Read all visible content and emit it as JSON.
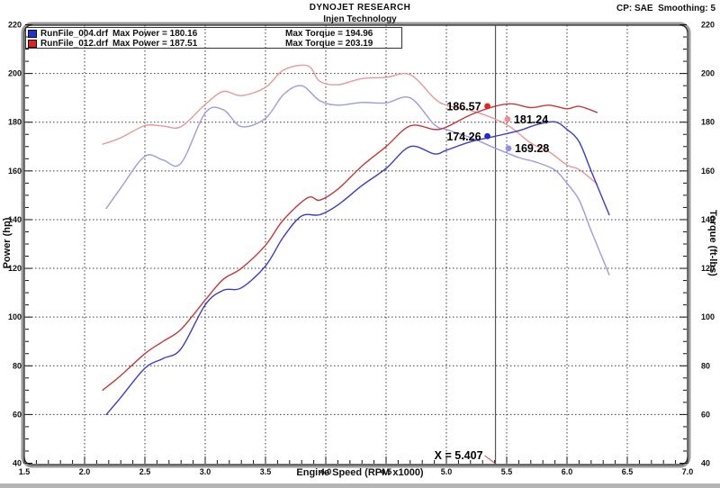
{
  "header": {
    "title": "DYNOJET RESEARCH",
    "subtitle": "Injen Technology",
    "correction": "CP: SAE  Smoothing: 5"
  },
  "legend": {
    "runs": [
      {
        "run_label": "RunFile_004.drf",
        "max_power": "Max Power = 180.16",
        "max_torque": "Max Torque = 194.96",
        "color": "#2233cc"
      },
      {
        "run_label": "RunFile_012.drf",
        "max_power": "Max Power = 187.51",
        "max_torque": "Max Torque = 203.19",
        "color": "#dd2222"
      }
    ]
  },
  "chart_data": {
    "type": "line",
    "title": "DYNOJET RESEARCH",
    "subtitle": "Injen Technology",
    "xlabel": "Engine Speed (RPM x1000)",
    "ylabel_left": "Power (hp)",
    "ylabel_right": "Torque (ft-lbs)",
    "xlim": [
      1.5,
      7.0
    ],
    "ylim": [
      40,
      220
    ],
    "x_ticks": [
      "1.5",
      "2.0",
      "2.5",
      "3.0",
      "3.5",
      "4.0",
      "4.5",
      "5.0",
      "5.5",
      "6.0",
      "6.5",
      "7.0"
    ],
    "y_ticks": [
      220,
      200,
      180,
      160,
      140,
      120,
      100,
      80,
      60,
      40
    ],
    "x_minor_step": 0.1,
    "y_minor_step": 5,
    "grid": true,
    "legend_position": "top-left",
    "cursor": {
      "x": 5.407,
      "label": "X = 5.407"
    },
    "series": [
      {
        "name": "RunFile_004.drf Torque",
        "unit": "ft-lbs",
        "color": "#9c9ce0",
        "x": [
          2.18,
          2.3,
          2.5,
          2.65,
          2.8,
          3.0,
          3.15,
          3.3,
          3.5,
          3.65,
          3.8,
          3.95,
          4.1,
          4.3,
          4.5,
          4.7,
          4.9,
          5.0,
          5.2,
          5.407,
          5.6,
          5.75,
          5.9,
          6.0,
          6.1,
          6.2,
          6.35
        ],
        "values": [
          144.6,
          153.0,
          166.0,
          164.5,
          163.2,
          183.8,
          185.1,
          178.2,
          181.6,
          191.4,
          194.96,
          188.8,
          187.0,
          188.1,
          187.9,
          190.0,
          179.0,
          177.0,
          173.7,
          169.28,
          165.5,
          163.5,
          160.4,
          154.9,
          148.1,
          135.5,
          117.4
        ]
      },
      {
        "name": "RunFile_012.drf Torque",
        "unit": "ft-lbs",
        "color": "#e59898",
        "x": [
          2.15,
          2.3,
          2.5,
          2.65,
          2.8,
          3.0,
          3.15,
          3.3,
          3.5,
          3.65,
          3.85,
          3.95,
          4.1,
          4.3,
          4.5,
          4.7,
          4.9,
          5.0,
          5.2,
          5.407,
          5.55,
          5.7,
          5.85,
          6.0,
          6.1,
          6.25
        ],
        "values": [
          171.0,
          173.6,
          178.6,
          178.4,
          178.2,
          187.3,
          192.6,
          190.9,
          194.3,
          201.4,
          203.19,
          196.8,
          195.4,
          197.9,
          198.4,
          199.5,
          189.8,
          187.0,
          184.8,
          181.24,
          177.4,
          171.4,
          167.9,
          162.4,
          160.6,
          154.6
        ]
      },
      {
        "name": "RunFile_004.drf Power",
        "unit": "hp",
        "color": "#3c3cbe",
        "x": [
          2.18,
          2.3,
          2.5,
          2.65,
          2.8,
          3.0,
          3.15,
          3.3,
          3.5,
          3.65,
          3.8,
          3.95,
          4.1,
          4.3,
          4.5,
          4.7,
          4.9,
          5.0,
          5.2,
          5.407,
          5.6,
          5.75,
          5.9,
          6.0,
          6.1,
          6.2,
          6.35
        ],
        "values": [
          60,
          67,
          79,
          83,
          87,
          105,
          111,
          112,
          121,
          133,
          141.5,
          142,
          146,
          154,
          161,
          170,
          167,
          168.5,
          172,
          174.26,
          176.5,
          179,
          180.16,
          177,
          172,
          160,
          142
        ]
      },
      {
        "name": "RunFile_012.drf Power",
        "unit": "hp",
        "color": "#bf3a3a",
        "x": [
          2.15,
          2.3,
          2.5,
          2.65,
          2.8,
          3.0,
          3.15,
          3.3,
          3.5,
          3.65,
          3.85,
          3.95,
          4.1,
          4.3,
          4.5,
          4.7,
          4.9,
          5.0,
          5.2,
          5.407,
          5.55,
          5.7,
          5.85,
          6.0,
          6.1,
          6.25
        ],
        "values": [
          70,
          76,
          85,
          90,
          95,
          107,
          115.5,
          120,
          129.5,
          140,
          149,
          148,
          152.5,
          162,
          170,
          178.5,
          177,
          178,
          183,
          186.57,
          187.51,
          186,
          187,
          185.5,
          186.5,
          184
        ]
      }
    ],
    "markers": [
      {
        "label": "186.57",
        "x": 5.34,
        "value": 186.57,
        "color": "#e02525",
        "side": "left"
      },
      {
        "label": "181.24",
        "x": 5.507,
        "value": 181.24,
        "color": "#ef8f8f",
        "side": "right"
      },
      {
        "label": "174.26",
        "x": 5.34,
        "value": 174.26,
        "color": "#2525dd",
        "side": "left"
      },
      {
        "label": "169.28",
        "x": 5.515,
        "value": 169.28,
        "color": "#8f8fef",
        "side": "right"
      }
    ]
  }
}
